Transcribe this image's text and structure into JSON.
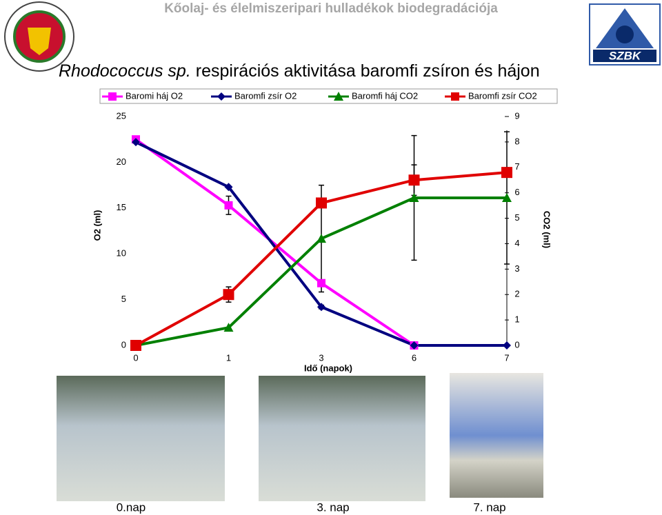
{
  "header": "Kőolaj- és élelmiszeripari hulladékok biodegradációja",
  "logo_text": "SZBK",
  "chart_data": {
    "type": "line",
    "title_italic": "Rhodococcus sp.",
    "title": "respirációs aktivitása baromfi zsíron és hájon",
    "xlabel": "Idő (napok)",
    "ylabel": "O2 (ml)",
    "y2label": "CO2 (ml)",
    "categories": [
      "0",
      "1",
      "3",
      "6",
      "7"
    ],
    "ylim": [
      0,
      25
    ],
    "yticks": [
      0,
      5,
      10,
      15,
      20,
      25
    ],
    "y2lim": [
      0,
      9
    ],
    "y2ticks": [
      0,
      1,
      2,
      3,
      4,
      5,
      6,
      7,
      8,
      9
    ],
    "legend": "top",
    "series": [
      {
        "name": "Baromi háj O2",
        "color": "#ff00ff",
        "marker": "square",
        "values": [
          22.5,
          15.3,
          6.8,
          0,
          null
        ],
        "errors": [
          null,
          1.0,
          null,
          null,
          null
        ]
      },
      {
        "name": "Baromfi zsír O2",
        "color": "#000080",
        "marker": "diamond",
        "values": [
          22.2,
          17.3,
          4.2,
          0,
          0
        ],
        "errors": [
          null,
          null,
          0.2,
          null,
          null
        ]
      },
      {
        "name": "Baromfi háj CO2",
        "color": "#008000",
        "marker": "triangle",
        "axis": "y2",
        "values": [
          0,
          0.7,
          4.2,
          5.8,
          5.8
        ],
        "errors": [
          null,
          null,
          2.1,
          2.45,
          2.6
        ]
      },
      {
        "name": "Baromfi zsír CO2",
        "color": "#e00000",
        "marker": "bigsquare",
        "axis": "y2",
        "values": [
          0,
          2.0,
          5.6,
          6.5,
          6.8
        ],
        "errors": [
          null,
          0.3,
          0.15,
          0.6,
          null
        ]
      }
    ]
  },
  "photos": [
    {
      "caption": "0.nap"
    },
    {
      "caption": "3. nap"
    },
    {
      "caption": "7. nap"
    }
  ]
}
